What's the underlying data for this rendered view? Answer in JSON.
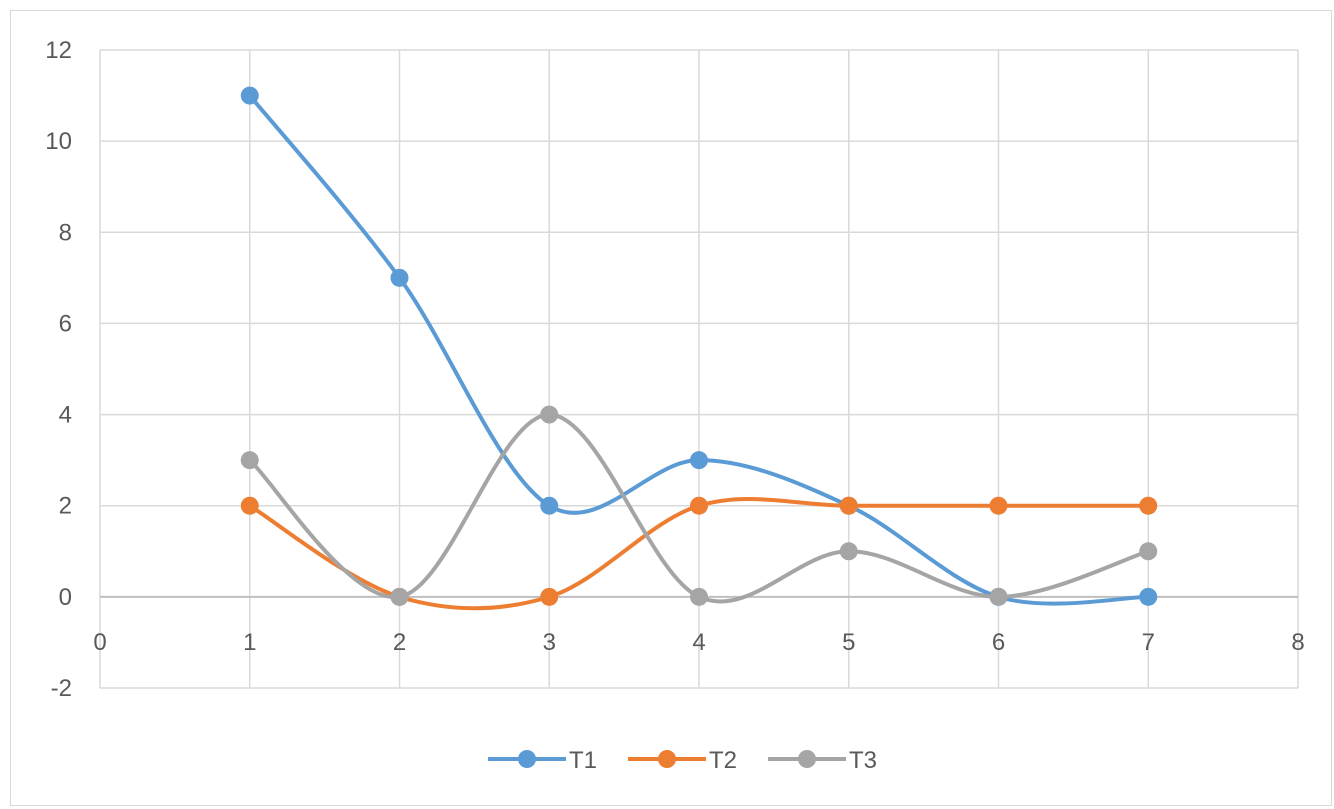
{
  "chart_data": {
    "type": "scatter",
    "subtype": "smooth-lines-with-markers",
    "title": "",
    "xlabel": "",
    "ylabel": "",
    "xlim": [
      0,
      8
    ],
    "ylim": [
      -2,
      12
    ],
    "xticks": [
      0,
      1,
      2,
      3,
      4,
      5,
      6,
      7,
      8
    ],
    "yticks": [
      -2,
      0,
      2,
      4,
      6,
      8,
      10,
      12
    ],
    "grid": true,
    "legend": "bottom",
    "x": [
      1,
      2,
      3,
      4,
      5,
      6,
      7
    ],
    "series": [
      {
        "name": "T1",
        "color": "#5b9bd5",
        "values": [
          11,
          7,
          2,
          3,
          2,
          0,
          0
        ]
      },
      {
        "name": "T2",
        "color": "#ed7d31",
        "values": [
          2,
          0,
          0,
          2,
          2,
          2,
          2
        ]
      },
      {
        "name": "T3",
        "color": "#a5a5a5",
        "values": [
          3,
          0,
          4,
          0,
          1,
          0,
          1
        ]
      }
    ]
  }
}
